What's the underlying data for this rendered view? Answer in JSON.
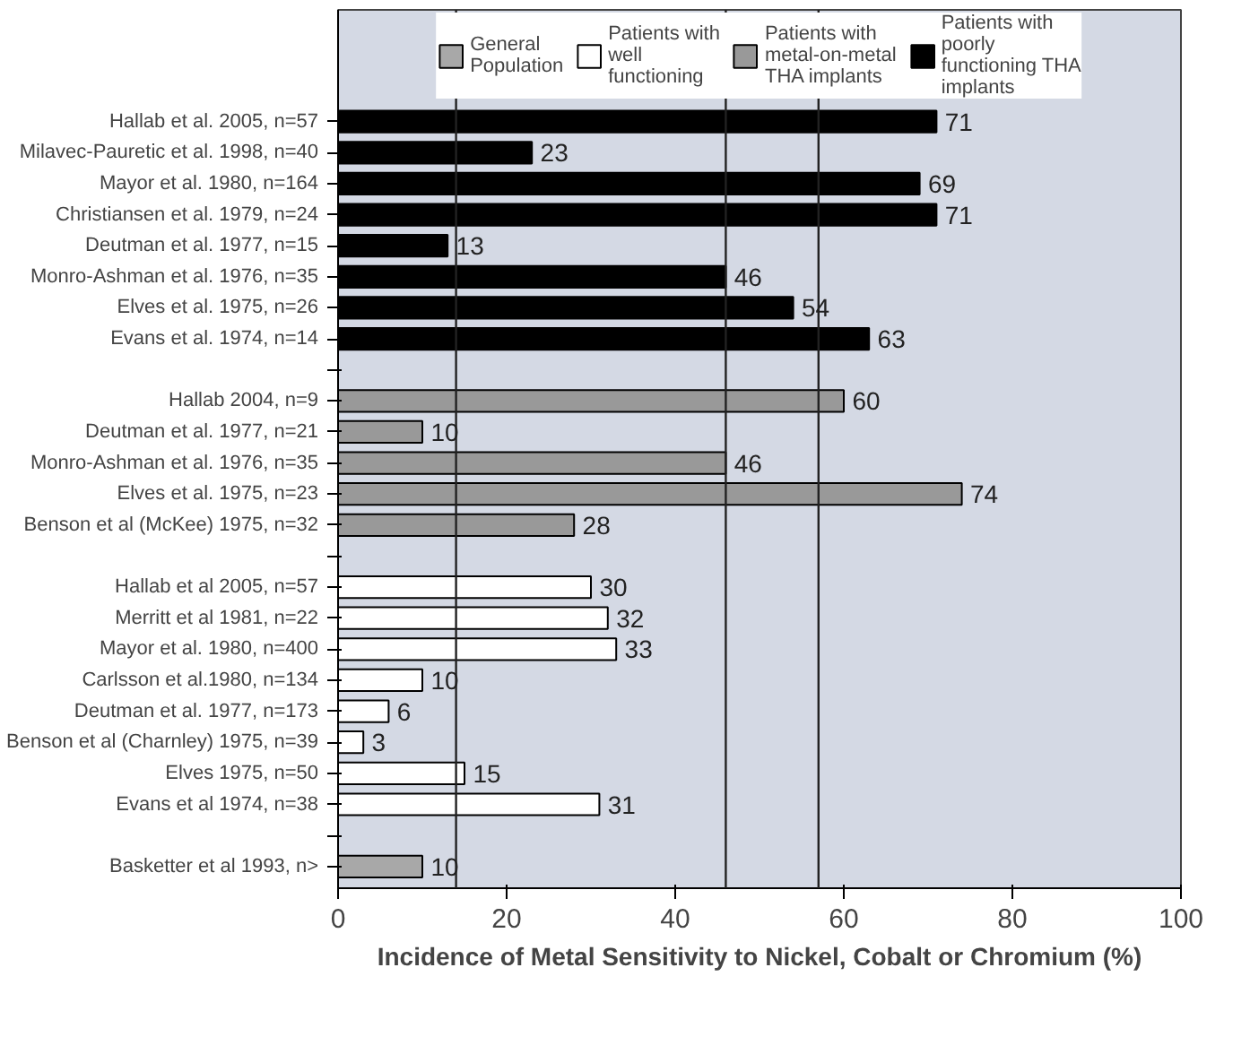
{
  "chart_data": {
    "type": "bar",
    "orientation": "horizontal",
    "xlabel": "Incidence of Metal Sensitivity to Nickel, Cobalt or Chromium (%)",
    "categories": [
      "Hallab et al. 2005, n=57",
      "Milavec-Pauretic et al. 1998, n=40",
      "Mayor et al. 1980, n=164",
      "Christiansen et al. 1979, n=24",
      "Deutman et al. 1977, n=15",
      "Monro-Ashman et al. 1976, n=35",
      "Elves et al. 1975, n=26",
      "Evans et al. 1974, n=14",
      null,
      "Hallab 2004, n=9",
      "Deutman et al. 1977, n=21",
      "Monro-Ashman et al. 1976, n=35",
      "Elves et al. 1975, n=23",
      "Benson et al (McKee) 1975, n=32",
      null,
      "Hallab et al 2005, n=57",
      "Merritt et al 1981, n=22",
      "Mayor et al. 1980, n=400",
      "Carlsson et al.1980, n=134",
      "Deutman et al. 1977, n=173",
      "Benson et al (Charnley) 1975, n=39",
      "Elves 1975, n=50",
      "Evans et al 1974, n=38",
      null,
      "Basketter et al 1993, n>"
    ],
    "series": [
      {
        "name": "General Population",
        "color": "#a8a8a8",
        "values": [
          null,
          null,
          null,
          null,
          null,
          null,
          null,
          null,
          null,
          null,
          null,
          null,
          null,
          null,
          null,
          null,
          null,
          null,
          null,
          null,
          null,
          null,
          null,
          null,
          10
        ]
      },
      {
        "name": "Patients with well functioning",
        "color": "#ffffff",
        "values": [
          null,
          null,
          null,
          null,
          null,
          null,
          null,
          null,
          null,
          null,
          null,
          null,
          null,
          null,
          null,
          30,
          32,
          33,
          10,
          6,
          3,
          15,
          31,
          null,
          null
        ]
      },
      {
        "name": "Patients with metal-on-metal THA implants",
        "color": "#999999",
        "values": [
          null,
          null,
          null,
          null,
          null,
          null,
          null,
          null,
          null,
          60,
          10,
          46,
          74,
          28,
          null,
          null,
          null,
          null,
          null,
          null,
          null,
          null,
          null,
          null,
          null
        ]
      },
      {
        "name": "Patients with poorly functioning THA implants",
        "color": "#000000",
        "values": [
          71,
          23,
          69,
          71,
          13,
          46,
          54,
          63,
          null,
          null,
          null,
          null,
          null,
          null,
          null,
          null,
          null,
          null,
          null,
          null,
          null,
          null,
          null,
          null,
          null
        ]
      }
    ],
    "xlim": [
      0,
      100
    ],
    "xticks": [
      0,
      20,
      40,
      60,
      80,
      100
    ],
    "ref_lines": [
      {
        "axis": "x",
        "value": 14
      },
      {
        "axis": "x",
        "value": 46
      },
      {
        "axis": "x",
        "value": 57
      }
    ],
    "data_labels": true,
    "legend": "top",
    "grid": false
  }
}
